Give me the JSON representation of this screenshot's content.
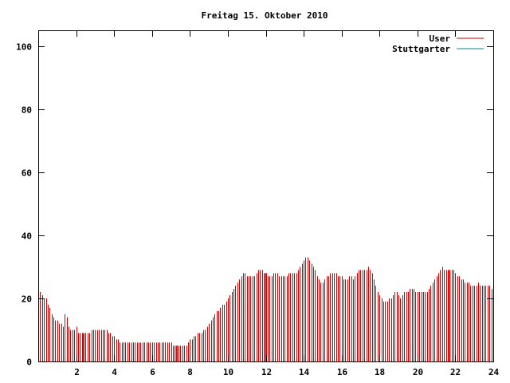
{
  "chart_data": {
    "type": "bar",
    "title": "Freitag 15. Oktober 2010",
    "xlabel": "",
    "ylabel": "",
    "xlim": [
      0,
      24
    ],
    "ylim": [
      0,
      105
    ],
    "xticks": [
      2,
      4,
      6,
      8,
      10,
      12,
      14,
      16,
      18,
      20,
      22,
      24
    ],
    "xtick_labels": [
      "2",
      "4",
      "6",
      "8",
      "10",
      "12",
      "14",
      "16",
      "18",
      "20",
      "22",
      "24"
    ],
    "yticks": [
      0,
      20,
      40,
      60,
      80,
      100
    ],
    "ytick_labels": [
      "0",
      "20",
      "40",
      "60",
      "80",
      "100"
    ],
    "grid": false,
    "legend_position": "top-right",
    "series": [
      {
        "name": "User",
        "color": "#cc0000",
        "x_start": 0,
        "x_step": 0.1,
        "values": [
          23,
          22,
          21,
          20,
          20,
          18,
          17,
          15,
          14,
          13,
          13,
          12,
          12,
          11,
          15,
          14,
          11,
          10,
          10,
          10,
          11,
          9,
          9,
          9,
          9,
          9,
          9,
          9,
          10,
          10,
          10,
          10,
          10,
          10,
          10,
          10,
          10,
          9,
          9,
          8,
          8,
          7,
          7,
          6,
          6,
          6,
          6,
          6,
          6,
          6,
          6,
          6,
          6,
          6,
          6,
          6,
          6,
          6,
          6,
          6,
          6,
          6,
          6,
          6,
          6,
          6,
          6,
          6,
          6,
          6,
          6,
          5,
          5,
          5,
          5,
          5,
          5,
          5,
          5,
          6,
          7,
          7,
          8,
          8,
          9,
          9,
          9,
          10,
          10,
          11,
          12,
          13,
          14,
          15,
          16,
          16,
          17,
          18,
          18,
          19,
          20,
          21,
          22,
          23,
          24,
          25,
          26,
          27,
          28,
          28,
          27,
          27,
          27,
          27,
          27,
          28,
          29,
          29,
          29,
          28,
          28,
          27,
          27,
          27,
          28,
          28,
          28,
          27,
          27,
          27,
          27,
          27,
          28,
          28,
          28,
          28,
          28,
          29,
          30,
          31,
          32,
          33,
          33,
          32,
          31,
          30,
          29,
          27,
          26,
          25,
          25,
          26,
          27,
          27,
          28,
          28,
          28,
          28,
          27,
          27,
          27,
          26,
          26,
          26,
          27,
          27,
          26,
          27,
          28,
          29,
          29,
          29,
          29,
          29,
          30,
          29,
          28,
          26,
          24,
          22,
          21,
          20,
          19,
          19,
          19,
          20,
          20,
          21,
          22,
          22,
          21,
          20,
          21,
          22,
          22,
          22,
          23,
          23,
          23,
          22,
          22,
          22,
          22,
          22,
          22,
          22,
          23,
          24,
          25,
          26,
          27,
          28,
          29,
          30,
          29,
          29,
          29,
          29,
          29,
          29,
          28,
          27,
          27,
          26,
          26,
          25,
          25,
          25,
          24,
          24,
          24,
          24,
          25,
          24,
          24,
          24,
          24,
          24,
          24,
          23
        ]
      },
      {
        "name": "Stuttgarter",
        "color": "#008b8b",
        "values": []
      }
    ],
    "highlight_x": [
      2.4,
      7.3,
      12.0,
      21.7
    ]
  }
}
